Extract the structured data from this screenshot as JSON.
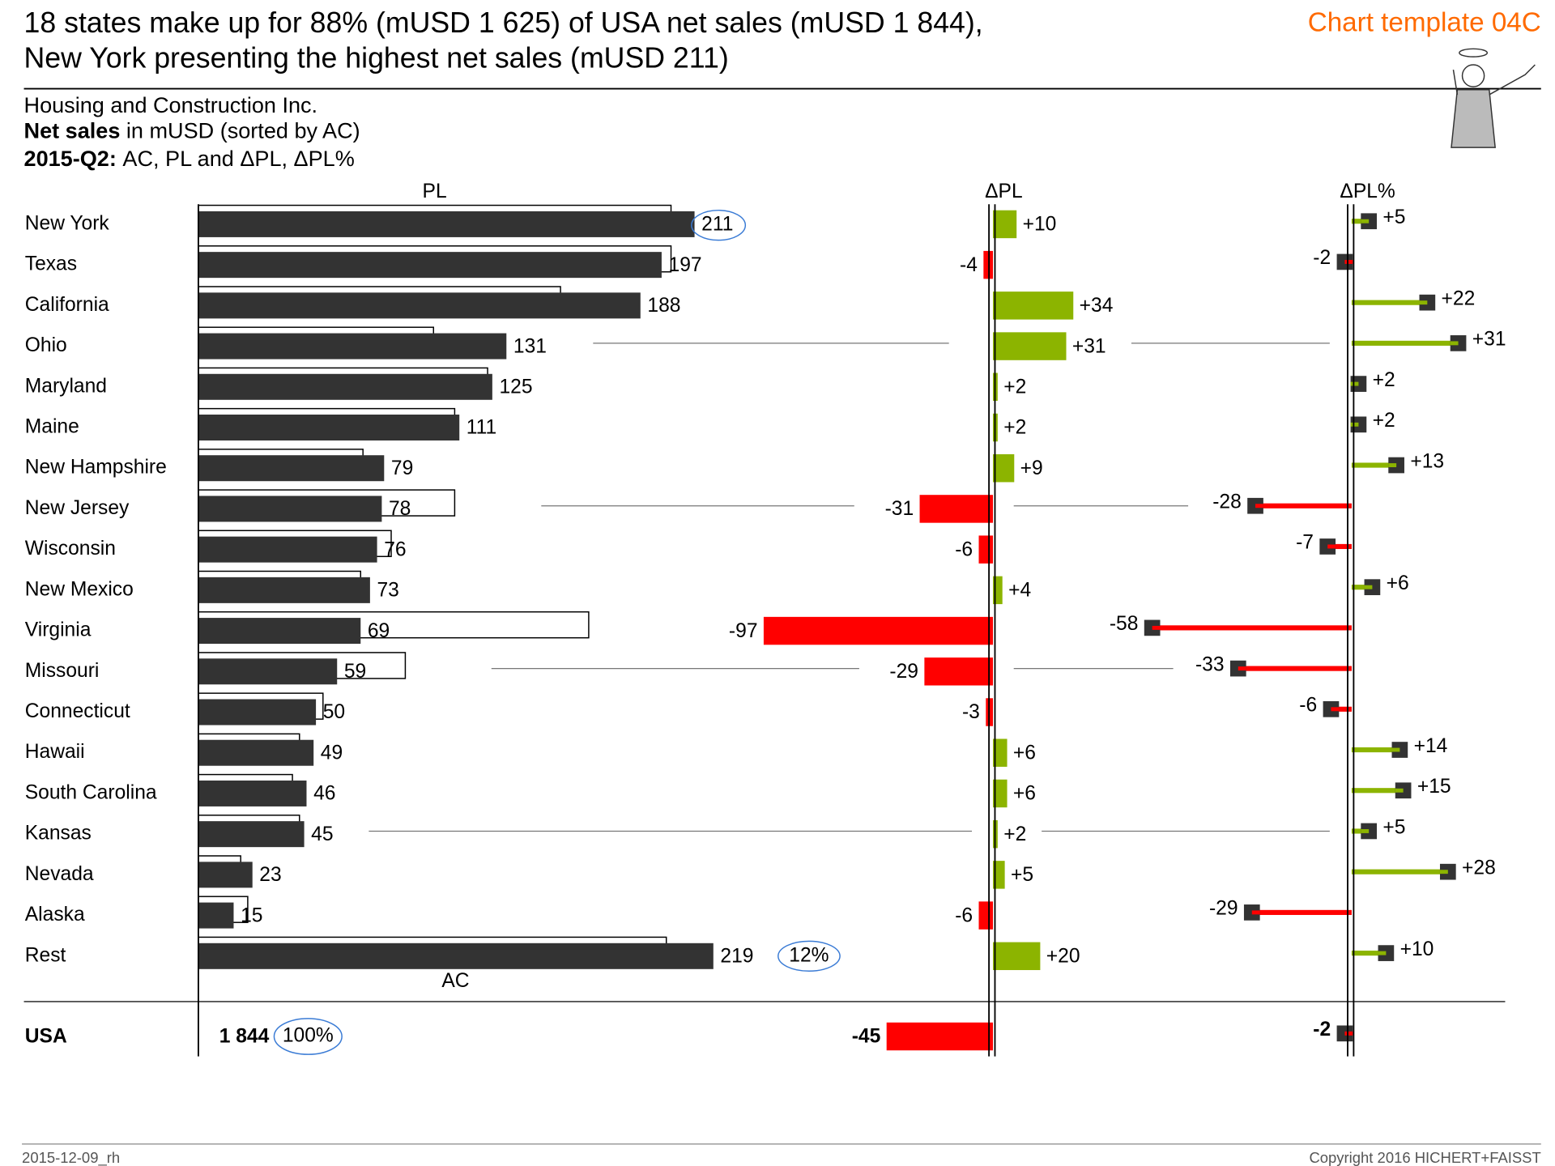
{
  "header": {
    "title_line1": "18 states make up for 88% (mUSD 1 625) of USA net sales (mUSD 1 844),",
    "title_line2": "New York presenting the highest net sales (mUSD 211)",
    "template": "Chart template 04C",
    "company": "Housing and Construction Inc.",
    "measure_bold": "Net sales",
    "measure_rest": "in mUSD (sorted by AC)",
    "period_bold": "2015-Q2:",
    "period_rest": "AC, PL and ΔPL, ΔPL%"
  },
  "chart_data": [
    {
      "type": "bar",
      "orientation": "horizontal",
      "categories": [
        "New York",
        "Texas",
        "California",
        "Ohio",
        "Maryland",
        "Maine",
        "New Hampshire",
        "New Jersey",
        "Wisconsin",
        "New Mexico",
        "Virginia",
        "Missouri",
        "Connecticut",
        "Hawaii",
        "South Carolina",
        "Kansas",
        "Nevada",
        "Alaska",
        "Rest"
      ],
      "series": [
        {
          "name": "AC",
          "color": "#333333",
          "values": [
            211,
            197,
            188,
            131,
            125,
            111,
            79,
            78,
            76,
            73,
            69,
            59,
            50,
            49,
            46,
            45,
            23,
            15,
            219
          ]
        },
        {
          "name": "PL",
          "color": "#ffffff",
          "values": [
            201,
            201,
            154,
            100,
            123,
            109,
            70,
            109,
            82,
            69,
            166,
            88,
            53,
            43,
            40,
            43,
            18,
            21,
            199
          ]
        }
      ],
      "rest_share": "12%",
      "xlim": [
        0,
        220
      ]
    },
    {
      "type": "delta-bar",
      "label": "ΔPL",
      "positive_color": "#8cb400",
      "negative_color": "#ff0000",
      "values": [
        10,
        -4,
        34,
        31,
        2,
        2,
        9,
        -31,
        -6,
        4,
        -97,
        -29,
        -3,
        6,
        6,
        2,
        5,
        -6,
        20
      ],
      "value_labels": [
        "+10",
        "-4",
        "+34",
        "+31",
        "+2",
        "+2",
        "+9",
        "-31",
        "-6",
        "+4",
        "-97",
        "-29",
        "-3",
        "+6",
        "+6",
        "+2",
        "+5",
        "-6",
        "+20"
      ],
      "xlim": [
        -100,
        40
      ]
    },
    {
      "type": "pin",
      "label": "ΔPL%",
      "positive_color": "#8cb400",
      "negative_color": "#ff0000",
      "values": [
        5,
        -2,
        22,
        31,
        2,
        2,
        13,
        -28,
        -7,
        6,
        -58,
        -33,
        -6,
        14,
        15,
        5,
        28,
        -29,
        10
      ],
      "value_labels": [
        "+5",
        "-2",
        "+22",
        "+31",
        "+2",
        "+2",
        "+13",
        "-28",
        "-7",
        "+6",
        "-58",
        "-33",
        "-6",
        "+14",
        "+15",
        "+5",
        "+28",
        "-29",
        "+10"
      ],
      "xlim": [
        -60,
        40
      ]
    }
  ],
  "total": {
    "label": "USA",
    "ac": 1844,
    "ac_label": "1 844",
    "share": "100%",
    "delta": -45,
    "delta_pct": -2
  },
  "footer": {
    "date": "2015-12-09_rh",
    "copyright": "Copyright 2016 HICHERT+FAISST"
  }
}
